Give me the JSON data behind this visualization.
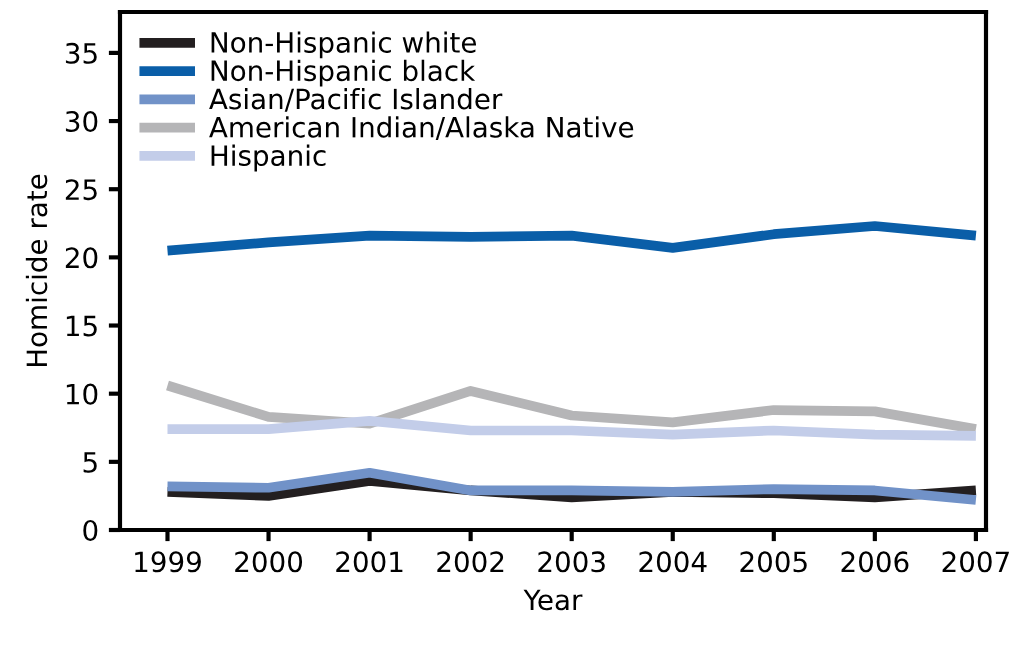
{
  "chart_data": {
    "type": "line",
    "xlabel": "Year",
    "ylabel": "Homicide rate",
    "x": [
      1999,
      2000,
      2001,
      2002,
      2003,
      2004,
      2005,
      2006,
      2007
    ],
    "series": [
      {
        "name": "Non-Hispanic white",
        "color": "#231f20",
        "values": [
          2.8,
          2.5,
          3.6,
          2.9,
          2.4,
          2.8,
          2.7,
          2.4,
          2.9
        ]
      },
      {
        "name": "Non-Hispanic black",
        "color": "#0a5ea8",
        "values": [
          20.5,
          21.1,
          21.6,
          21.5,
          21.6,
          20.7,
          21.7,
          22.3,
          21.6
        ]
      },
      {
        "name": "Asian/Pacific Islander",
        "color": "#7192c8",
        "values": [
          3.2,
          3.1,
          4.2,
          2.9,
          2.9,
          2.8,
          3.0,
          2.9,
          2.2
        ]
      },
      {
        "name": "American Indian/Alaska Native",
        "color": "#b5b5b7",
        "values": [
          10.6,
          8.3,
          7.8,
          10.2,
          8.4,
          7.9,
          8.8,
          8.7,
          7.4
        ]
      },
      {
        "name": "Hispanic",
        "color": "#c3cde9",
        "values": [
          7.4,
          7.4,
          8.0,
          7.3,
          7.3,
          7.0,
          7.3,
          7.0,
          6.9
        ]
      }
    ],
    "xlim": [
      1998.53,
      2007.1
    ],
    "xticks": [
      1999,
      2000,
      2001,
      2002,
      2003,
      2004,
      2005,
      2006,
      2007
    ],
    "ylim": [
      0,
      38
    ],
    "yticks": [
      0,
      5,
      10,
      15,
      20,
      25,
      30,
      35
    ],
    "grid": false,
    "legend": "top left",
    "marker": "none",
    "line_style": "solid"
  }
}
